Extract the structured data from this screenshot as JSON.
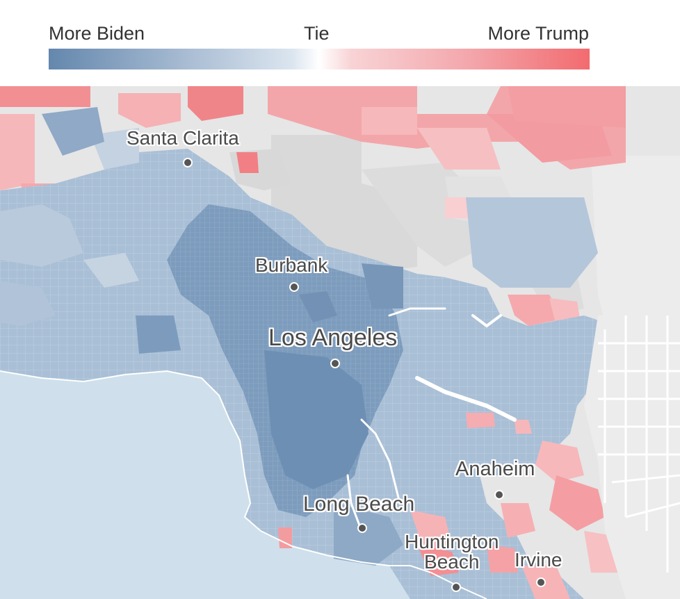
{
  "legend": {
    "left_label": "More Biden",
    "center_label": "Tie",
    "right_label": "More Trump",
    "biden_color": "#6487ad",
    "trump_color": "#f26b6f"
  },
  "map": {
    "ocean_color": "#cfe0ec",
    "land_color": "#e5e5e5",
    "cities": [
      {
        "name": "Santa Clarita",
        "label": "Santa Clarita"
      },
      {
        "name": "Burbank",
        "label": "Burbank"
      },
      {
        "name": "Los Angeles",
        "label": "Los Angeles"
      },
      {
        "name": "Anaheim",
        "label": "Anaheim"
      },
      {
        "name": "Long Beach",
        "label": "Long Beach"
      },
      {
        "name": "Huntington Beach",
        "label": "Huntington\nBeach"
      },
      {
        "name": "Irvine",
        "label": "Irvine"
      }
    ]
  }
}
